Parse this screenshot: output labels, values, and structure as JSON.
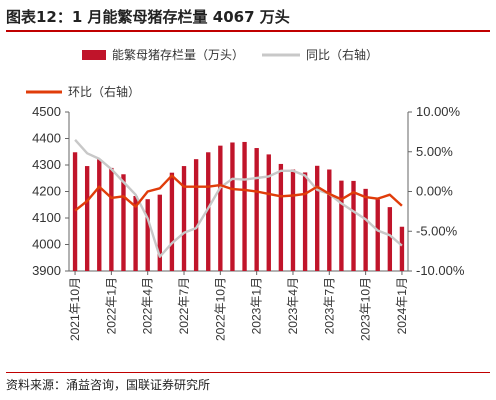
{
  "title": "图表12：1 月能繁母猪存栏量 4067 万头",
  "source": "资料来源：涌益咨询，国联证券研究所",
  "colors": {
    "bar": "#c0142a",
    "yoy": "#c8c8c8",
    "mom": "#e03c0a",
    "accent": "#c00000"
  },
  "chart_data": {
    "type": "bar",
    "x": [
      "2021年10月",
      "2021年11月",
      "2021年12月",
      "2022年1月",
      "2022年2月",
      "2022年3月",
      "2022年4月",
      "2022年5月",
      "2022年6月",
      "2022年7月",
      "2022年8月",
      "2022年9月",
      "2022年10月",
      "2022年11月",
      "2022年12月",
      "2023年1月",
      "2023年2月",
      "2023年3月",
      "2023年4月",
      "2023年5月",
      "2023年6月",
      "2023年7月",
      "2023年8月",
      "2023年9月",
      "2023年10月",
      "2023年11月",
      "2023年12月",
      "2024年1月"
    ],
    "xtick_labels": [
      "2021年10月",
      "2022年1月",
      "2022年4月",
      "2022年7月",
      "2022年10月",
      "2023年1月",
      "2023年4月",
      "2023年7月",
      "2023年10月",
      "2024年1月"
    ],
    "series": [
      {
        "name": "能繁母猪存栏量（万头）",
        "type": "bar",
        "axis": "left",
        "values": [
          4348,
          4296,
          4322,
          4289,
          4265,
          4183,
          4171,
          4188,
          4271,
          4296,
          4322,
          4348,
          4373,
          4385,
          4387,
          4364,
          4340,
          4304,
          4283,
          4272,
          4297,
          4283,
          4241,
          4240,
          4210,
          4170,
          4141,
          4067
        ]
      },
      {
        "name": "同比（右轴）",
        "type": "line",
        "axis": "right",
        "values": [
          6.5,
          4.8,
          4.1,
          2.8,
          1.2,
          -0.4,
          -3.4,
          -8.2,
          -6.5,
          -5.2,
          -4.6,
          -2.1,
          0.5,
          1.6,
          1.5,
          1.7,
          1.9,
          2.6,
          2.6,
          2.0,
          0.2,
          -0.3,
          -1.5,
          -2.5,
          -3.5,
          -4.9,
          -5.5,
          -6.8
        ]
      },
      {
        "name": "环比（右轴）",
        "type": "line",
        "axis": "right",
        "values": [
          -2.4,
          -1.2,
          0.6,
          -0.8,
          -0.6,
          -1.9,
          0.0,
          0.4,
          2.0,
          0.6,
          0.6,
          0.6,
          0.8,
          0.3,
          0.2,
          0.0,
          -0.3,
          -0.6,
          -0.5,
          -0.3,
          0.6,
          -0.3,
          -1.0,
          -0.1,
          -0.7,
          -0.9,
          -0.4,
          -1.8
        ]
      }
    ],
    "yleft": {
      "lim": [
        3900,
        4500
      ],
      "ticks": [
        "3900",
        "4000",
        "4100",
        "4200",
        "4300",
        "4400",
        "4500"
      ]
    },
    "yright": {
      "lim": [
        -10,
        10
      ],
      "ticks": [
        "-10.00%",
        "-5.00%",
        "0.00%",
        "5.00%",
        "10.00%"
      ]
    },
    "legend": [
      "能繁母猪存栏量（万头）",
      "同比（右轴）",
      "环比（右轴）"
    ],
    "legend_position": "top"
  }
}
